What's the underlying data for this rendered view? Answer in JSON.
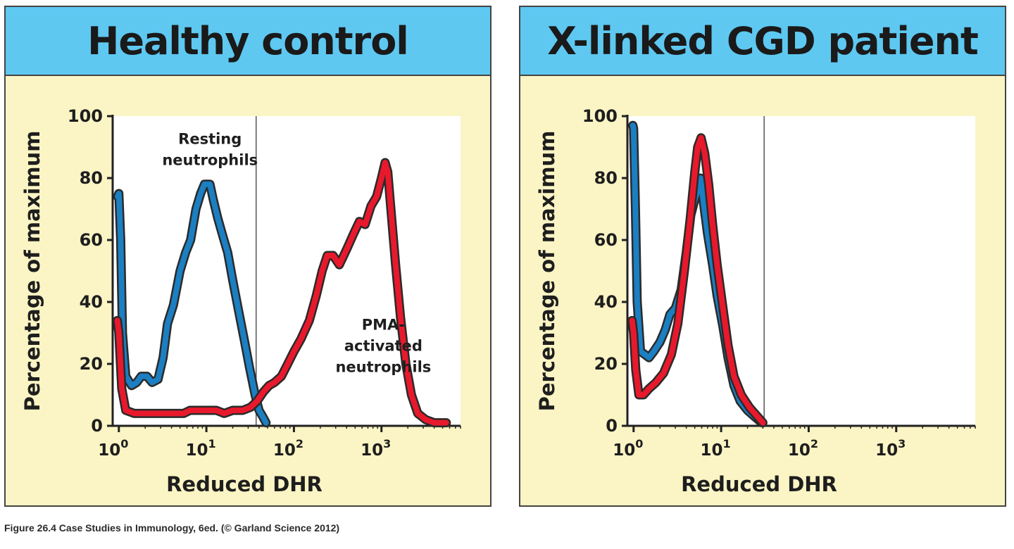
{
  "caption": "Figure 26.4 Case Studies in Immunology, 6ed. (© Garland Science 2012)",
  "colors": {
    "header": "#5ec8f1",
    "panel_background": "#fbf4c4",
    "plot_background": "#ffffff",
    "blue_curve": "#1b7fc2",
    "red_curve": "#e8192c",
    "curve_outline": "#2a2a2a"
  },
  "chart_data": [
    {
      "type": "line",
      "title": "Healthy control",
      "xlabel": "Reduced DHR",
      "ylabel": "Percentage of maximum",
      "xscale": "log",
      "xlim": [
        0.85,
        8000
      ],
      "ylim": [
        0,
        100
      ],
      "yticks": [
        "0",
        "20",
        "40",
        "60",
        "80",
        "100"
      ],
      "xticks": [
        {
          "base": "10",
          "exp": "0",
          "value": 1
        },
        {
          "base": "10",
          "exp": "1",
          "value": 10
        },
        {
          "base": "10",
          "exp": "2",
          "value": 100
        },
        {
          "base": "10",
          "exp": "3",
          "value": 1000
        }
      ],
      "gate_x": 37,
      "grid": false,
      "annotations": [
        {
          "lines": [
            "Resting",
            "neutrophils"
          ],
          "x": 11,
          "y": 91
        },
        {
          "lines": [
            "PMA-",
            "activated",
            "neutrophils"
          ],
          "x": 1050,
          "y": 31
        }
      ],
      "series": [
        {
          "name": "Resting neutrophils",
          "color": "#1b7fc2",
          "points": [
            [
              0.97,
              74
            ],
            [
              1.0,
              75
            ],
            [
              1.05,
              60
            ],
            [
              1.1,
              30
            ],
            [
              1.2,
              16
            ],
            [
              1.4,
              13
            ],
            [
              1.6,
              14
            ],
            [
              1.8,
              16
            ],
            [
              2.1,
              16
            ],
            [
              2.4,
              14
            ],
            [
              2.8,
              15
            ],
            [
              3.2,
              22
            ],
            [
              3.6,
              33
            ],
            [
              4.2,
              39
            ],
            [
              5.0,
              50
            ],
            [
              5.8,
              56
            ],
            [
              6.6,
              60
            ],
            [
              7.6,
              70
            ],
            [
              8.6,
              75
            ],
            [
              9.5,
              78
            ],
            [
              11.0,
              78
            ],
            [
              12.0,
              73
            ],
            [
              13.5,
              67
            ],
            [
              15.5,
              61
            ],
            [
              17.5,
              56
            ],
            [
              20,
              47
            ],
            [
              23,
              38
            ],
            [
              27,
              28
            ],
            [
              31,
              19
            ],
            [
              36,
              10
            ],
            [
              40,
              5
            ],
            [
              44,
              3
            ],
            [
              48,
              1
            ]
          ]
        },
        {
          "name": "PMA-activated neutrophils",
          "color": "#e8192c",
          "points": [
            [
              0.96,
              34
            ],
            [
              1.0,
              30
            ],
            [
              1.08,
              12
            ],
            [
              1.2,
              5
            ],
            [
              1.5,
              4
            ],
            [
              2.0,
              4
            ],
            [
              2.6,
              4
            ],
            [
              3.5,
              4
            ],
            [
              4.5,
              4
            ],
            [
              5.5,
              4
            ],
            [
              6.5,
              5
            ],
            [
              8,
              5
            ],
            [
              10,
              5
            ],
            [
              13,
              5
            ],
            [
              16,
              4
            ],
            [
              20,
              5
            ],
            [
              26,
              5
            ],
            [
              32,
              6
            ],
            [
              38,
              8
            ],
            [
              45,
              11
            ],
            [
              52,
              13
            ],
            [
              60,
              14
            ],
            [
              72,
              16
            ],
            [
              85,
              20
            ],
            [
              100,
              24
            ],
            [
              120,
              28
            ],
            [
              150,
              34
            ],
            [
              180,
              42
            ],
            [
              210,
              50
            ],
            [
              240,
              55
            ],
            [
              280,
              55
            ],
            [
              330,
              52
            ],
            [
              400,
              57
            ],
            [
              480,
              62
            ],
            [
              560,
              66
            ],
            [
              650,
              65
            ],
            [
              760,
              71
            ],
            [
              880,
              74
            ],
            [
              1000,
              80
            ],
            [
              1100,
              85
            ],
            [
              1180,
              82
            ],
            [
              1280,
              70
            ],
            [
              1450,
              52
            ],
            [
              1650,
              35
            ],
            [
              1900,
              20
            ],
            [
              2200,
              10
            ],
            [
              2600,
              4
            ],
            [
              3200,
              2
            ],
            [
              4000,
              1
            ],
            [
              5500,
              1
            ]
          ]
        }
      ]
    },
    {
      "type": "line",
      "title": "X-linked CGD patient",
      "xlabel": "Reduced DHR",
      "ylabel": "Percentage of maximum",
      "xscale": "log",
      "xlim": [
        0.85,
        8000
      ],
      "ylim": [
        0,
        100
      ],
      "yticks": [
        "0",
        "20",
        "40",
        "60",
        "80",
        "100"
      ],
      "xticks": [
        {
          "base": "10",
          "exp": "0",
          "value": 1
        },
        {
          "base": "10",
          "exp": "1",
          "value": 10
        },
        {
          "base": "10",
          "exp": "2",
          "value": 100
        },
        {
          "base": "10",
          "exp": "3",
          "value": 1000
        }
      ],
      "gate_x": 31,
      "grid": false,
      "annotations": [],
      "series": [
        {
          "name": "Resting neutrophils",
          "color": "#1b7fc2",
          "points": [
            [
              0.98,
              97
            ],
            [
              1.0,
              96
            ],
            [
              1.05,
              70
            ],
            [
              1.1,
              40
            ],
            [
              1.2,
              24
            ],
            [
              1.35,
              23
            ],
            [
              1.5,
              22
            ],
            [
              1.7,
              24
            ],
            [
              2.0,
              27
            ],
            [
              2.3,
              31
            ],
            [
              2.6,
              36
            ],
            [
              3.0,
              38
            ],
            [
              3.5,
              44
            ],
            [
              4.0,
              56
            ],
            [
              4.5,
              68
            ],
            [
              5.0,
              73
            ],
            [
              5.4,
              76
            ],
            [
              5.8,
              80
            ],
            [
              6.3,
              72
            ],
            [
              7.0,
              62
            ],
            [
              8.0,
              52
            ],
            [
              9.0,
              42
            ],
            [
              10.5,
              32
            ],
            [
              12,
              22
            ],
            [
              14,
              13
            ],
            [
              16.5,
              8
            ],
            [
              20,
              5
            ],
            [
              24,
              3
            ],
            [
              29,
              1
            ]
          ]
        },
        {
          "name": "PMA-activated neutrophils",
          "color": "#e8192c",
          "points": [
            [
              0.96,
              34
            ],
            [
              1.0,
              30
            ],
            [
              1.06,
              18
            ],
            [
              1.15,
              10
            ],
            [
              1.3,
              10
            ],
            [
              1.5,
              12
            ],
            [
              1.8,
              14
            ],
            [
              2.2,
              17
            ],
            [
              2.7,
              23
            ],
            [
              3.2,
              33
            ],
            [
              3.8,
              50
            ],
            [
              4.4,
              66
            ],
            [
              5.0,
              82
            ],
            [
              5.4,
              90
            ],
            [
              5.9,
              93
            ],
            [
              6.5,
              88
            ],
            [
              7.2,
              78
            ],
            [
              8.0,
              65
            ],
            [
              9.0,
              52
            ],
            [
              10.5,
              38
            ],
            [
              12,
              26
            ],
            [
              14,
              16
            ],
            [
              17,
              10
            ],
            [
              21,
              6
            ],
            [
              26,
              3
            ],
            [
              30,
              1
            ]
          ]
        }
      ]
    }
  ]
}
